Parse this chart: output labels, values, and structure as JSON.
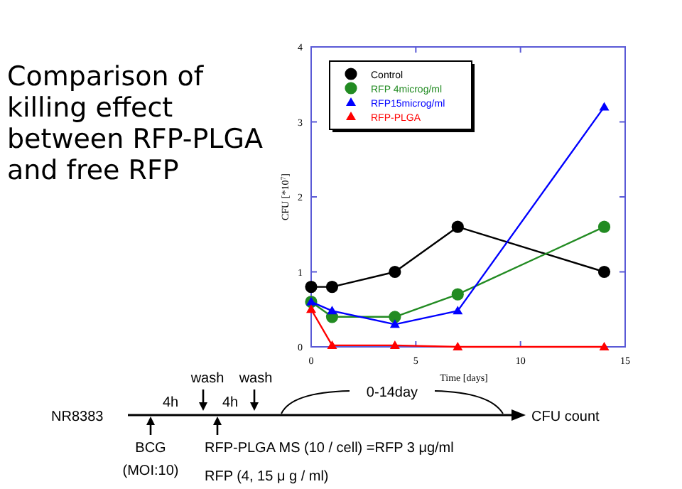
{
  "chart_data": {
    "type": "line",
    "title": "Comparison of killing effect between RFP-PLGA and free RFP",
    "xlabel": "Time [days]",
    "ylabel": "CFU [*10$^{7}$]",
    "x": [
      0,
      1,
      4,
      7,
      14
    ],
    "series": [
      {
        "name": "Control",
        "color": "#000000",
        "marker": "circle",
        "values": [
          0.8,
          0.8,
          1.0,
          1.6,
          1.0
        ]
      },
      {
        "name": "RFP 4microg/ml",
        "color": "#228b22",
        "marker": "circle",
        "values": [
          0.6,
          0.4,
          0.4,
          0.7,
          1.6
        ]
      },
      {
        "name": "RFP15microg/ml",
        "color": "#0000ff",
        "marker": "triangle",
        "values": [
          0.6,
          0.48,
          0.3,
          0.48,
          3.2
        ]
      },
      {
        "name": "RFP-PLGA",
        "color": "#ff0000",
        "marker": "triangle",
        "values": [
          0.5,
          0.02,
          0.02,
          0.0,
          0.0
        ]
      }
    ],
    "xlim": [
      0,
      15
    ],
    "xticks": [
      0,
      5,
      10,
      15
    ],
    "ylim": [
      0,
      4
    ],
    "yticks": [
      0,
      1,
      2,
      3,
      4
    ],
    "grid": false,
    "legend": "top left",
    "annotations": [
      "NR8383",
      "4h",
      "wash",
      "4h",
      "wash",
      "0-14day",
      "CFU count",
      "BCG",
      "(MOI:10)",
      "RFP-PLGA MS (10 / cell) =RFP 3 μg/ml",
      "RFP (4, 15 μ g / ml)"
    ]
  }
}
